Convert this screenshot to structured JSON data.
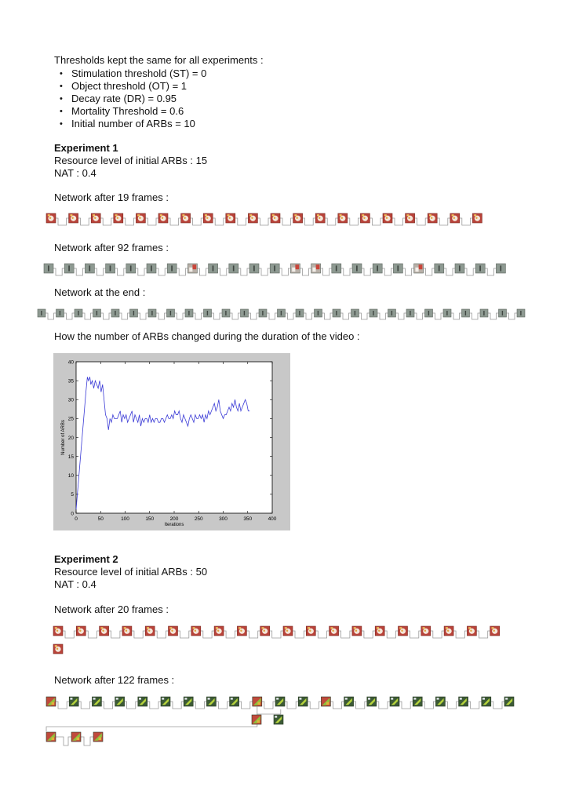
{
  "thresholds_heading": "Thresholds kept the same for all experiments :",
  "thresholds": [
    "Stimulation threshold (ST) = 0",
    "Object threshold (OT) = 1",
    "Decay rate (DR) = 0.95",
    "Mortality Threshold = 0.6",
    "Initial number of ARBs = 10"
  ],
  "experiment1": {
    "title": "Experiment 1",
    "resource": "Resource level of initial ARBs : 15",
    "nat": "NAT : 0.4",
    "net19_label": "Network after 19 frames :",
    "net92_label": "Network after 92 frames :",
    "netend_label": "Network at the end :",
    "chart_label": "How the number of ARBs changed during the duration of the video :"
  },
  "experiment2": {
    "title": "Experiment 2",
    "resource": "Resource level of initial ARBs : 50",
    "nat": "NAT : 0.4",
    "net20_label": "Network after 20 frames :",
    "net122_label": "Network after 122 frames :"
  },
  "colors": {
    "face_bg": "#c9453a",
    "grey_node": "#8e9a92",
    "green_node": "#5a8a4a",
    "edge": "#9a9a9a",
    "plot_line": "#3b3bd6",
    "chart_frame": "#c8c8c8"
  },
  "chart_data": {
    "type": "line",
    "title": "",
    "xlabel": "Iterations",
    "ylabel": "Number of ARBs",
    "xlim": [
      0,
      400
    ],
    "ylim": [
      0,
      40
    ],
    "xticks": [
      "0",
      "50",
      "100",
      "150",
      "200",
      "250",
      "300",
      "350",
      "400"
    ],
    "yticks": [
      "0",
      "5",
      "10",
      "15",
      "20",
      "25",
      "30",
      "35",
      "40"
    ],
    "grid": false,
    "series": [
      {
        "values_x": [
          0,
          20,
          23,
          25,
          28,
          30,
          33,
          36,
          39,
          42,
          45,
          48,
          51,
          54,
          57,
          60,
          63,
          66,
          69,
          72,
          75,
          78,
          81,
          84,
          87,
          90,
          93,
          96,
          99,
          102,
          105,
          108,
          111,
          114,
          117,
          120,
          123,
          126,
          129,
          132,
          135,
          138,
          141,
          144,
          147,
          150,
          153,
          156,
          159,
          162,
          165,
          168,
          171,
          174,
          177,
          180,
          183,
          186,
          189,
          192,
          195,
          198,
          201,
          204,
          207,
          210,
          213,
          216,
          219,
          222,
          225,
          228,
          231,
          234,
          237,
          240,
          243,
          246,
          249,
          252,
          255,
          258,
          261,
          264,
          267,
          270,
          273,
          276,
          279,
          282,
          285,
          288,
          291,
          294,
          297,
          300,
          303,
          306,
          309,
          312,
          315,
          318,
          321,
          324,
          327,
          330,
          333,
          336,
          339,
          342,
          345,
          348,
          351,
          354
        ],
        "values_y": [
          1,
          32,
          36,
          35,
          36,
          34,
          35,
          33,
          35,
          34,
          33,
          35,
          32,
          34,
          30,
          26,
          25,
          22,
          25,
          24,
          26,
          25,
          25,
          25,
          26,
          27,
          24,
          26,
          25,
          26,
          24,
          25,
          26,
          27,
          24,
          26,
          25,
          24,
          26,
          23,
          25,
          24,
          25,
          25,
          24,
          26,
          24,
          25,
          24,
          25,
          25,
          24,
          24,
          25,
          25,
          24,
          25,
          26,
          25,
          25,
          26,
          25,
          27,
          26,
          26,
          27,
          25,
          24,
          26,
          25,
          24,
          23,
          25,
          26,
          25,
          24,
          26,
          25,
          25,
          26,
          25,
          26,
          24,
          26,
          25,
          27,
          26,
          27,
          28,
          29,
          27,
          28,
          30,
          27,
          26,
          25,
          26,
          26,
          27,
          28,
          27,
          29,
          28,
          30,
          28,
          27,
          29,
          27,
          28,
          29,
          30,
          29,
          27,
          27
        ]
      }
    ]
  }
}
